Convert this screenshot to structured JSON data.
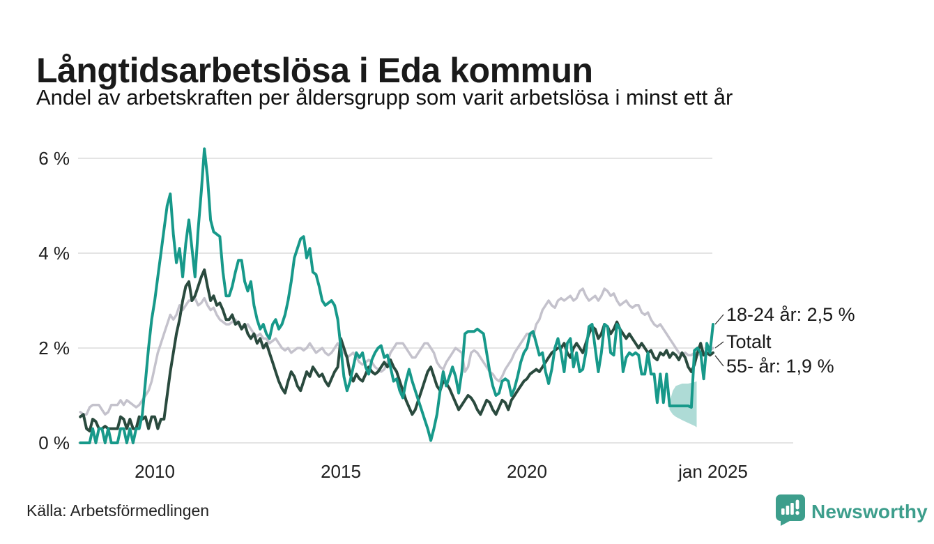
{
  "header": {
    "title": "Långtidsarbetslösa i Eda kommun",
    "subtitle": "Andel av arbetskraften per åldersgrupp som varit arbetslösa i minst ett år"
  },
  "footer": {
    "source": "Källa: Arbetsförmedlingen",
    "brand": "Newsworthy",
    "logo_icon": "speech-bubble-bar-chart-exclamation"
  },
  "colors": {
    "teal_line": "#17998a",
    "gray_line": "#c4c2cc",
    "darkgreen_line": "#2a4a3e",
    "band_fill": "rgba(23,153,138,0.35)",
    "gridline": "#e4e4e4",
    "connector": "#333333",
    "brand_teal": "#3d9e8c",
    "text": "#1a1a1a"
  },
  "chart_data": {
    "type": "line",
    "title": "Långtidsarbetslösa i Eda kommun",
    "subtitle": "Andel av arbetskraften per åldersgrupp som varit arbetslösa i minst ett år",
    "x_start": 2008.0,
    "x_step_months": 1,
    "x_end": 2025.0,
    "ylim": [
      0,
      6.5
    ],
    "grid": "horizontal-only",
    "yticks": [
      {
        "value": 6,
        "label": "6 %"
      },
      {
        "value": 4,
        "label": "4 %"
      },
      {
        "value": 2,
        "label": "2 %"
      },
      {
        "value": 0,
        "label": "0 %"
      }
    ],
    "xticks": [
      {
        "t": 2010,
        "label": "2010"
      },
      {
        "t": 2015,
        "label": "2015"
      },
      {
        "t": 2020,
        "label": "2020"
      },
      {
        "t": 2025,
        "label": "jan 2025"
      }
    ],
    "series": [
      {
        "name": "18-24 år",
        "color": "#17998a",
        "values": [
          0,
          0,
          0,
          0,
          0.3,
          0,
          0.3,
          0.3,
          0,
          0.3,
          0,
          0,
          0,
          0.3,
          0.3,
          0,
          0.3,
          0,
          0.3,
          0.3,
          0.6,
          1.3,
          2.0,
          2.6,
          3.0,
          3.5,
          4.0,
          4.5,
          5.0,
          5.25,
          4.4,
          3.8,
          4.1,
          3.5,
          4.2,
          4.7,
          4.1,
          3.5,
          4.5,
          5.3,
          6.2,
          5.6,
          4.7,
          4.45,
          4.4,
          4.35,
          3.6,
          3.1,
          3.1,
          3.3,
          3.6,
          3.85,
          3.85,
          3.4,
          3.2,
          3.4,
          2.9,
          2.6,
          2.4,
          2.5,
          2.3,
          2.2,
          2.5,
          2.6,
          2.4,
          2.5,
          2.7,
          3.0,
          3.4,
          3.9,
          4.1,
          4.3,
          4.35,
          3.9,
          4.1,
          3.6,
          3.55,
          3.3,
          3.0,
          2.9,
          2.95,
          3.0,
          2.9,
          2.6,
          2.0,
          1.4,
          1.1,
          1.3,
          1.6,
          1.9,
          1.8,
          1.9,
          1.6,
          1.45,
          1.75,
          1.9,
          2.0,
          2.05,
          1.8,
          1.85,
          1.6,
          1.3,
          1.35,
          1.1,
          0.95,
          1.3,
          1.55,
          1.3,
          1.1,
          0.9,
          0.7,
          0.5,
          0.3,
          0.05,
          0.3,
          0.6,
          1.1,
          1.5,
          1.2,
          1.4,
          1.6,
          1.4,
          1.05,
          1.5,
          2.3,
          2.35,
          2.35,
          2.35,
          2.4,
          2.35,
          2.3,
          1.9,
          1.5,
          1.2,
          1.0,
          1.05,
          1.3,
          1.35,
          1.3,
          1.0,
          1.15,
          1.4,
          1.7,
          1.9,
          2.0,
          2.3,
          2.35,
          2.1,
          1.85,
          1.9,
          1.5,
          1.25,
          1.55,
          2.0,
          2.2,
          1.9,
          1.5,
          2.1,
          2.2,
          1.6,
          1.9,
          1.5,
          1.55,
          1.9,
          2.45,
          2.5,
          2.0,
          1.5,
          1.9,
          2.5,
          2.45,
          1.9,
          1.85,
          2.5,
          2.4,
          1.5,
          1.8,
          1.9,
          1.85,
          1.9,
          1.85,
          1.45,
          1.45,
          1.9,
          1.45,
          1.45,
          0.85,
          1.45,
          0.85,
          1.45,
          0.78,
          0.78,
          0.78,
          0.78,
          0.78,
          0.78,
          0.78,
          0.75,
          1.95,
          2.0,
          1.9,
          1.35,
          2.1,
          1.9,
          2.5
        ]
      },
      {
        "name": "Totalt",
        "color": "#c4c2cc",
        "values": [
          0.65,
          0.6,
          0.6,
          0.75,
          0.8,
          0.8,
          0.8,
          0.7,
          0.6,
          0.65,
          0.8,
          0.8,
          0.8,
          0.9,
          0.8,
          0.9,
          0.85,
          0.8,
          0.75,
          0.8,
          0.9,
          1.0,
          1.1,
          1.3,
          1.6,
          1.9,
          2.1,
          2.3,
          2.5,
          2.7,
          2.6,
          2.7,
          2.9,
          2.8,
          2.9,
          3.0,
          3.0,
          3.05,
          2.9,
          2.95,
          3.05,
          2.9,
          2.8,
          2.85,
          2.7,
          2.6,
          2.55,
          2.5,
          2.5,
          2.55,
          2.6,
          2.5,
          2.4,
          2.45,
          2.5,
          2.4,
          2.3,
          2.25,
          2.3,
          2.2,
          2.2,
          2.1,
          2.15,
          2.2,
          2.1,
          2.0,
          1.95,
          2.0,
          1.9,
          1.95,
          2.0,
          2.0,
          1.95,
          2.0,
          2.1,
          2.0,
          1.9,
          1.95,
          2.0,
          1.9,
          1.85,
          1.9,
          2.0,
          2.1,
          2.0,
          1.9,
          1.8,
          1.85,
          1.9,
          1.8,
          1.7,
          1.65,
          1.7,
          1.75,
          1.7,
          1.6,
          1.55,
          1.5,
          1.55,
          1.7,
          1.9,
          2.0,
          2.1,
          2.1,
          2.1,
          2.0,
          1.9,
          1.8,
          1.8,
          1.9,
          2.0,
          2.1,
          2.1,
          2.0,
          1.9,
          1.7,
          1.6,
          1.55,
          1.7,
          1.8,
          1.9,
          2.0,
          1.95,
          1.9,
          1.5,
          1.6,
          1.9,
          1.95,
          1.9,
          1.8,
          1.7,
          1.6,
          1.5,
          1.45,
          1.35,
          1.3,
          1.4,
          1.55,
          1.65,
          1.75,
          1.9,
          2.0,
          2.1,
          2.2,
          2.3,
          2.3,
          2.25,
          2.5,
          2.6,
          2.8,
          2.9,
          3.0,
          2.9,
          2.85,
          3.0,
          3.05,
          3.0,
          3.05,
          3.1,
          3.0,
          3.05,
          3.2,
          3.25,
          3.1,
          3.0,
          3.05,
          3.1,
          3.0,
          3.1,
          3.25,
          3.2,
          3.1,
          3.15,
          3.0,
          2.9,
          2.95,
          3.0,
          2.9,
          2.85,
          2.9,
          2.9,
          2.75,
          2.7,
          2.75,
          2.6,
          2.5,
          2.45,
          2.5,
          2.4,
          2.3,
          2.2,
          2.1,
          2.0,
          1.9,
          1.85,
          1.9,
          1.85,
          1.85,
          1.9,
          1.85,
          1.9,
          1.9,
          1.95,
          1.95,
          2.0
        ]
      },
      {
        "name": "55- år",
        "color": "#2a4a3e",
        "values": [
          0.55,
          0.6,
          0.3,
          0.25,
          0.5,
          0.45,
          0.3,
          0.3,
          0.35,
          0.3,
          0.3,
          0.3,
          0.3,
          0.55,
          0.5,
          0.3,
          0.5,
          0.3,
          0.3,
          0.55,
          0.5,
          0.55,
          0.3,
          0.55,
          0.55,
          0.3,
          0.5,
          0.5,
          1.0,
          1.5,
          1.9,
          2.3,
          2.6,
          3.0,
          3.3,
          3.4,
          3.0,
          3.1,
          3.3,
          3.5,
          3.65,
          3.3,
          3.0,
          3.1,
          2.9,
          2.95,
          2.8,
          2.6,
          2.6,
          2.7,
          2.5,
          2.55,
          2.4,
          2.5,
          2.3,
          2.2,
          2.3,
          2.1,
          2.2,
          2.0,
          2.1,
          1.9,
          1.7,
          1.5,
          1.3,
          1.15,
          1.05,
          1.3,
          1.5,
          1.4,
          1.2,
          1.1,
          1.3,
          1.5,
          1.4,
          1.6,
          1.5,
          1.4,
          1.45,
          1.3,
          1.2,
          1.35,
          1.5,
          1.6,
          2.2,
          2.0,
          1.8,
          1.45,
          1.3,
          1.45,
          1.35,
          1.3,
          1.45,
          1.6,
          1.5,
          1.45,
          1.5,
          1.6,
          1.7,
          1.6,
          1.75,
          1.6,
          1.5,
          1.3,
          1.1,
          0.9,
          0.75,
          0.6,
          0.7,
          0.9,
          1.1,
          1.3,
          1.5,
          1.6,
          1.4,
          1.2,
          1.1,
          1.3,
          1.25,
          1.15,
          1.0,
          0.85,
          0.7,
          0.8,
          0.9,
          1.0,
          0.95,
          0.85,
          0.7,
          0.6,
          0.75,
          0.9,
          0.85,
          0.7,
          0.6,
          0.75,
          0.9,
          0.85,
          0.7,
          0.9,
          1.0,
          1.1,
          1.2,
          1.3,
          1.35,
          1.45,
          1.5,
          1.55,
          1.5,
          1.6,
          1.7,
          1.8,
          1.9,
          1.95,
          2.0,
          2.0,
          2.1,
          1.9,
          1.8,
          2.0,
          2.1,
          2.0,
          1.9,
          2.1,
          2.3,
          2.45,
          2.4,
          2.2,
          2.3,
          2.5,
          2.45,
          2.3,
          2.4,
          2.55,
          2.4,
          2.3,
          2.2,
          2.3,
          2.2,
          2.1,
          2.0,
          2.1,
          2.0,
          1.9,
          1.95,
          1.8,
          1.75,
          1.9,
          1.85,
          1.95,
          1.8,
          1.9,
          1.85,
          1.75,
          1.9,
          1.8,
          1.6,
          1.5,
          1.65,
          1.9,
          2.1,
          1.85,
          1.9,
          1.85,
          1.9
        ]
      }
    ],
    "uncertainty_band": {
      "series": "18-24 år",
      "fill": "rgba(23,153,138,0.35)",
      "top": [
        [
          2023.83,
          0.85
        ],
        [
          2023.92,
          1.1
        ],
        [
          2024.0,
          1.2
        ],
        [
          2024.17,
          1.25
        ],
        [
          2024.33,
          1.25
        ],
        [
          2024.5,
          1.28
        ],
        [
          2024.56,
          1.3
        ]
      ],
      "bottom": [
        [
          2023.83,
          0.7
        ],
        [
          2023.92,
          0.6
        ],
        [
          2024.0,
          0.55
        ],
        [
          2024.17,
          0.48
        ],
        [
          2024.33,
          0.42
        ],
        [
          2024.5,
          0.36
        ],
        [
          2024.56,
          0.33
        ]
      ]
    },
    "annotations": [
      {
        "label": "18-24 år: 2,5 %",
        "anchor_t": 2025.0,
        "anchor_v": 2.5
      },
      {
        "label": "Totalt",
        "anchor_t": 2025.0,
        "anchor_v": 2.0
      },
      {
        "label": "55- år: 1,9 %",
        "anchor_t": 2025.0,
        "anchor_v": 1.9
      }
    ],
    "legend_position": "right-of-line-ends"
  }
}
